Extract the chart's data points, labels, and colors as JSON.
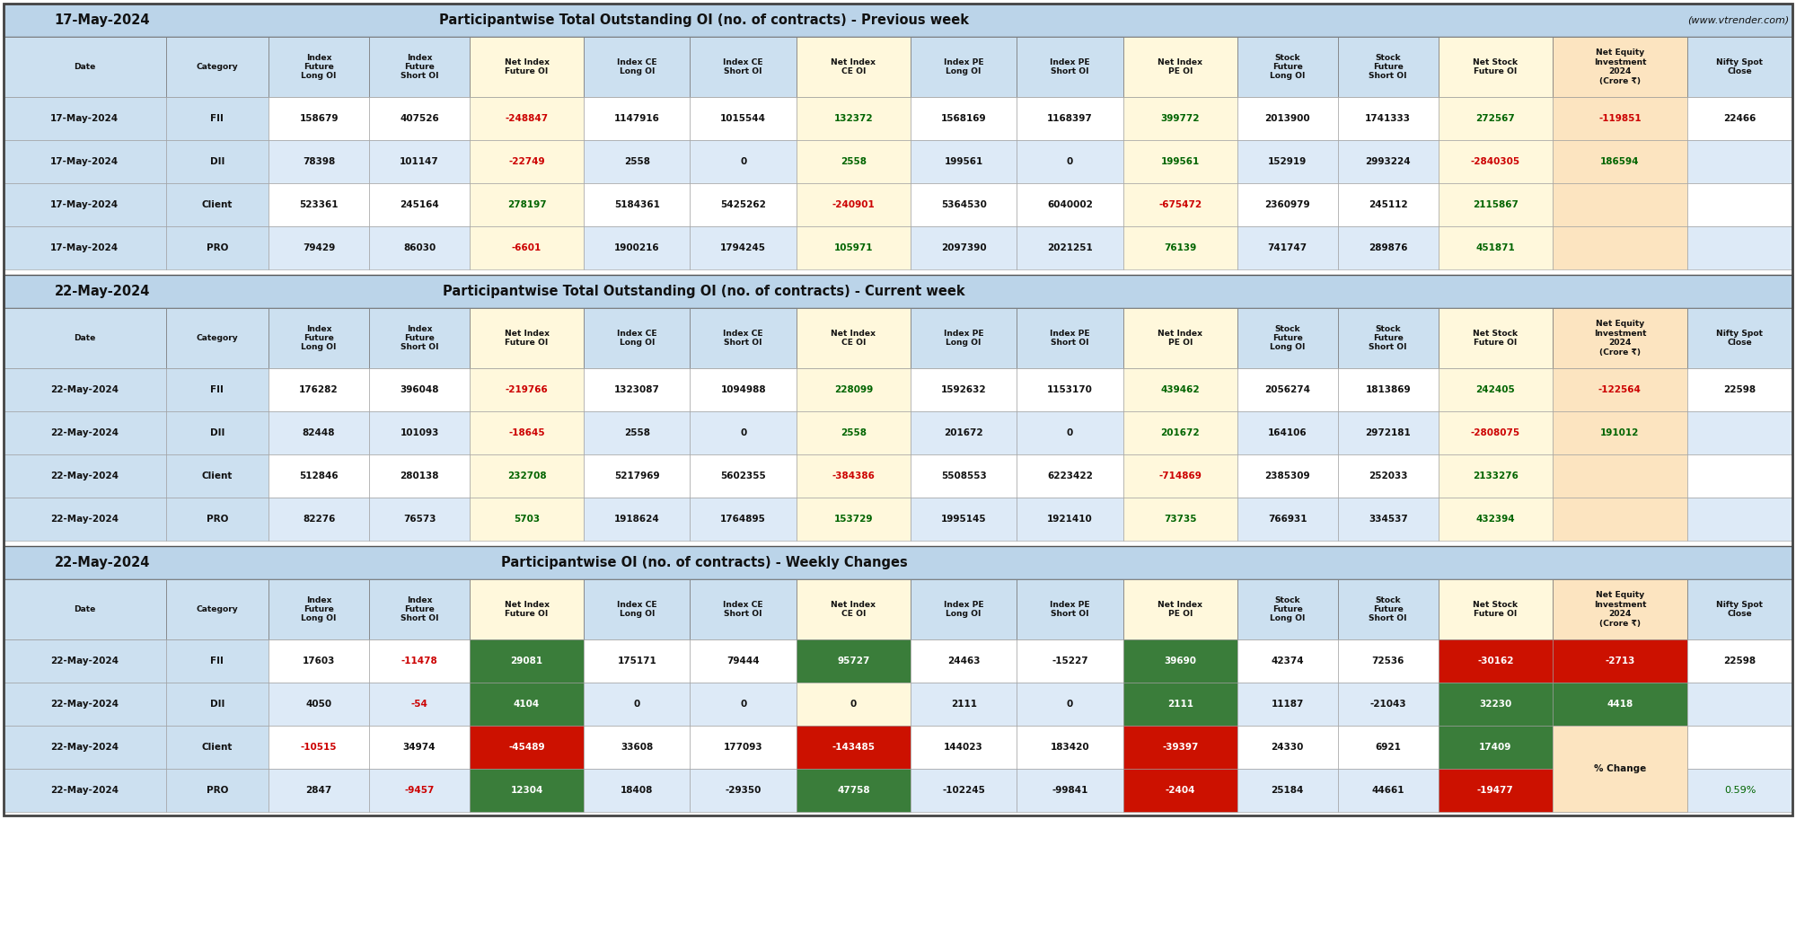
{
  "title1_date": "17-May-2024",
  "title1_main": "Participantwise Total Outstanding OI (no. of contracts) - Previous week",
  "title1_url": "(www.vtrender.com)",
  "title2_date": "22-May-2024",
  "title2_main": "Participantwise Total Outstanding OI (no. of contracts) - Current week",
  "title3_date": "22-May-2024",
  "title3_main": "Participantwise OI (no. of contracts) - Weekly Changes",
  "col_headers_line1": [
    "",
    "",
    "Index",
    "Index",
    "Net Index",
    "Index CE",
    "Index CE",
    "Net Index",
    "Index PE",
    "Index PE",
    "Net Index",
    "Stock",
    "Stock",
    "Net Stock",
    "Net Equity",
    "Nifty Spot"
  ],
  "col_headers_line2": [
    "Date",
    "Category",
    "Future",
    "Future",
    "Future OI",
    "Long OI",
    "Short OI",
    "CE OI",
    "Long OI",
    "Short OI",
    "PE OI",
    "Future",
    "Future",
    "Future OI",
    "Investment",
    "Close"
  ],
  "col_headers_line3": [
    "",
    "",
    "Long OI",
    "Short OI",
    "",
    "",
    "",
    "",
    "",
    "",
    "",
    "Long OI",
    "Short OI",
    "",
    "2024",
    ""
  ],
  "col_headers_line4": [
    "",
    "",
    "",
    "",
    "",
    "",
    "",
    "",
    "",
    "",
    "",
    "",
    "",
    "",
    "(Crore ₹)",
    ""
  ],
  "section1_rows": [
    [
      "17-May-2024",
      "FII",
      "158679",
      "407526",
      "-248847",
      "1147916",
      "1015544",
      "132372",
      "1568169",
      "1168397",
      "399772",
      "2013900",
      "1741333",
      "272567",
      "-119851",
      "22466"
    ],
    [
      "17-May-2024",
      "DII",
      "78398",
      "101147",
      "-22749",
      "2558",
      "0",
      "2558",
      "199561",
      "0",
      "199561",
      "152919",
      "2993224",
      "-2840305",
      "186594",
      ""
    ],
    [
      "17-May-2024",
      "Client",
      "523361",
      "245164",
      "278197",
      "5184361",
      "5425262",
      "-240901",
      "5364530",
      "6040002",
      "-675472",
      "2360979",
      "245112",
      "2115867",
      "",
      ""
    ],
    [
      "17-May-2024",
      "PRO",
      "79429",
      "86030",
      "-6601",
      "1900216",
      "1794245",
      "105971",
      "2097390",
      "2021251",
      "76139",
      "741747",
      "289876",
      "451871",
      "",
      ""
    ]
  ],
  "section2_rows": [
    [
      "22-May-2024",
      "FII",
      "176282",
      "396048",
      "-219766",
      "1323087",
      "1094988",
      "228099",
      "1592632",
      "1153170",
      "439462",
      "2056274",
      "1813869",
      "242405",
      "-122564",
      "22598"
    ],
    [
      "22-May-2024",
      "DII",
      "82448",
      "101093",
      "-18645",
      "2558",
      "0",
      "2558",
      "201672",
      "0",
      "201672",
      "164106",
      "2972181",
      "-2808075",
      "191012",
      ""
    ],
    [
      "22-May-2024",
      "Client",
      "512846",
      "280138",
      "232708",
      "5217969",
      "5602355",
      "-384386",
      "5508553",
      "6223422",
      "-714869",
      "2385309",
      "252033",
      "2133276",
      "",
      ""
    ],
    [
      "22-May-2024",
      "PRO",
      "82276",
      "76573",
      "5703",
      "1918624",
      "1764895",
      "153729",
      "1995145",
      "1921410",
      "73735",
      "766931",
      "334537",
      "432394",
      "",
      ""
    ]
  ],
  "section3_rows": [
    [
      "22-May-2024",
      "FII",
      "17603",
      "-11478",
      "29081",
      "175171",
      "79444",
      "95727",
      "24463",
      "-15227",
      "39690",
      "42374",
      "72536",
      "-30162",
      "-2713",
      "22598"
    ],
    [
      "22-May-2024",
      "DII",
      "4050",
      "-54",
      "4104",
      "0",
      "0",
      "0",
      "2111",
      "0",
      "2111",
      "11187",
      "-21043",
      "32230",
      "4418",
      ""
    ],
    [
      "22-May-2024",
      "Client",
      "-10515",
      "34974",
      "-45489",
      "33608",
      "177093",
      "-143485",
      "144023",
      "183420",
      "-39397",
      "24330",
      "6921",
      "17409",
      "",
      ""
    ],
    [
      "22-May-2024",
      "PRO",
      "2847",
      "-9457",
      "12304",
      "18408",
      "-29350",
      "47758",
      "-102245",
      "-99841",
      "-2404",
      "25184",
      "44661",
      "-19477",
      "",
      ""
    ]
  ],
  "pct_change": "0.59%",
  "bg_title": "#bbd4e9",
  "bg_header": "#cce0f0",
  "bg_white": "#ffffff",
  "bg_yellow": "#fff8dc",
  "bg_peach": "#fce4c0",
  "bg_row_blue": "#ddeaf7",
  "bg_row_white": "#ffffff",
  "color_pos": "#006400",
  "color_neg": "#cc0000",
  "color_black": "#111111",
  "cell_green": "#3a7d3a",
  "cell_red": "#cc1100",
  "cell_white_text": "#ffffff"
}
